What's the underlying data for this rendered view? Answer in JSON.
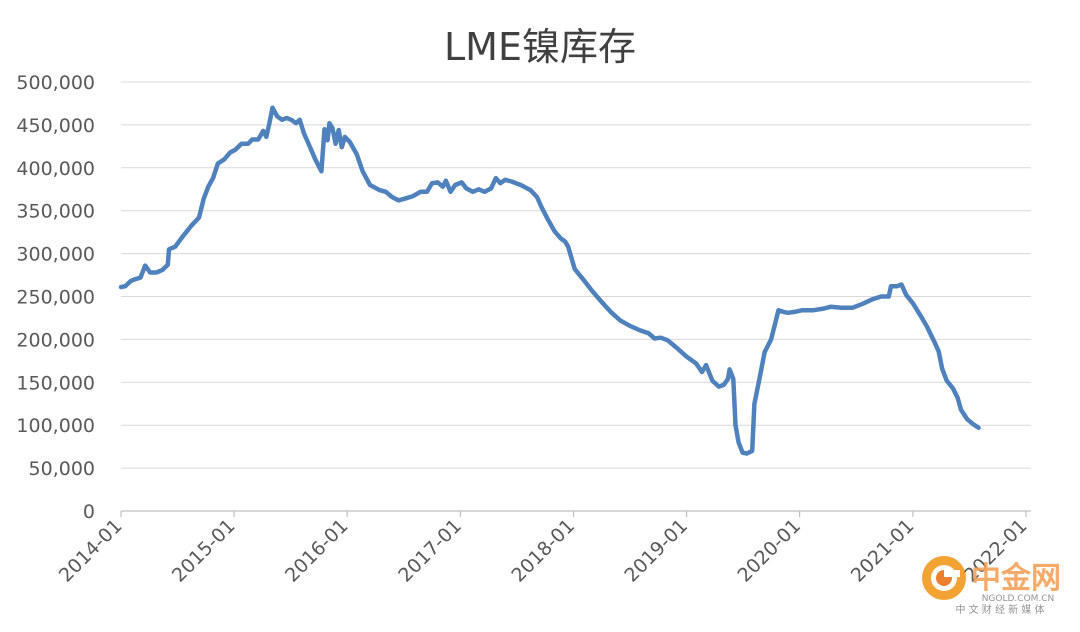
{
  "chart_data": {
    "type": "line",
    "title": "LME镍库存",
    "xlabel": "",
    "ylabel": "",
    "ylim": [
      0,
      500000
    ],
    "grid": "horizontal",
    "legend": "none",
    "y_ticks": [
      "0",
      "50,000",
      "100,000",
      "150,000",
      "200,000",
      "250,000",
      "300,000",
      "350,000",
      "400,000",
      "450,000",
      "500,000"
    ],
    "x_ticks": [
      "2014-01",
      "2015-01",
      "2016-01",
      "2017-01",
      "2018-01",
      "2019-01",
      "2020-01",
      "2021-01",
      "2022-01"
    ],
    "series": [
      {
        "color": "#4f81bd",
        "points": [
          [
            "2014-01-01",
            261000
          ],
          [
            "2014-01-15",
            262000
          ],
          [
            "2014-02-01",
            268000
          ],
          [
            "2014-02-15",
            270000
          ],
          [
            "2014-03-05",
            272000
          ],
          [
            "2014-03-20",
            286000
          ],
          [
            "2014-04-05",
            278000
          ],
          [
            "2014-04-25",
            278000
          ],
          [
            "2014-05-15",
            281000
          ],
          [
            "2014-06-01",
            287000
          ],
          [
            "2014-06-05",
            305000
          ],
          [
            "2014-06-25",
            308000
          ],
          [
            "2014-07-15",
            318000
          ],
          [
            "2014-08-15",
            332000
          ],
          [
            "2014-09-10",
            342000
          ],
          [
            "2014-09-25",
            364000
          ],
          [
            "2014-10-10",
            378000
          ],
          [
            "2014-10-25",
            388000
          ],
          [
            "2014-11-10",
            405000
          ],
          [
            "2014-12-01",
            410000
          ],
          [
            "2014-12-20",
            418000
          ],
          [
            "2015-01-05",
            421000
          ],
          [
            "2015-01-25",
            428000
          ],
          [
            "2015-02-15",
            428000
          ],
          [
            "2015-03-01",
            433000
          ],
          [
            "2015-03-20",
            433000
          ],
          [
            "2015-04-05",
            443000
          ],
          [
            "2015-04-15",
            436000
          ],
          [
            "2015-04-25",
            452000
          ],
          [
            "2015-05-05",
            470000
          ],
          [
            "2015-05-20",
            460000
          ],
          [
            "2015-06-05",
            456000
          ],
          [
            "2015-06-20",
            458000
          ],
          [
            "2015-07-05",
            456000
          ],
          [
            "2015-07-20",
            452000
          ],
          [
            "2015-08-01",
            456000
          ],
          [
            "2015-08-15",
            440000
          ],
          [
            "2015-09-01",
            426000
          ],
          [
            "2015-09-20",
            410000
          ],
          [
            "2015-10-10",
            396000
          ],
          [
            "2015-10-20",
            445000
          ],
          [
            "2015-10-30",
            432000
          ],
          [
            "2015-11-05",
            452000
          ],
          [
            "2015-11-15",
            446000
          ],
          [
            "2015-11-25",
            428000
          ],
          [
            "2015-12-05",
            444000
          ],
          [
            "2015-12-15",
            424000
          ],
          [
            "2015-12-25",
            436000
          ],
          [
            "2016-01-10",
            430000
          ],
          [
            "2016-02-01",
            416000
          ],
          [
            "2016-02-20",
            396000
          ],
          [
            "2016-03-15",
            380000
          ],
          [
            "2016-04-15",
            374000
          ],
          [
            "2016-05-05",
            372000
          ],
          [
            "2016-05-25",
            366000
          ],
          [
            "2016-06-15",
            362000
          ],
          [
            "2016-07-05",
            364000
          ],
          [
            "2016-08-01",
            367000
          ],
          [
            "2016-08-25",
            372000
          ],
          [
            "2016-09-15",
            372000
          ],
          [
            "2016-10-01",
            382000
          ],
          [
            "2016-10-20",
            383000
          ],
          [
            "2016-11-05",
            378000
          ],
          [
            "2016-11-15",
            385000
          ],
          [
            "2016-11-30",
            372000
          ],
          [
            "2016-12-15",
            380000
          ],
          [
            "2017-01-05",
            383000
          ],
          [
            "2017-01-20",
            376000
          ],
          [
            "2017-02-10",
            372000
          ],
          [
            "2017-03-01",
            375000
          ],
          [
            "2017-03-20",
            372000
          ],
          [
            "2017-04-10",
            376000
          ],
          [
            "2017-04-25",
            388000
          ],
          [
            "2017-05-10",
            382000
          ],
          [
            "2017-05-25",
            386000
          ],
          [
            "2017-06-15",
            384000
          ],
          [
            "2017-07-15",
            380000
          ],
          [
            "2017-08-15",
            374000
          ],
          [
            "2017-09-05",
            366000
          ],
          [
            "2017-09-20",
            354000
          ],
          [
            "2017-10-10",
            340000
          ],
          [
            "2017-11-01",
            326000
          ],
          [
            "2017-11-20",
            318000
          ],
          [
            "2017-12-05",
            314000
          ],
          [
            "2017-12-15",
            308000
          ],
          [
            "2018-01-05",
            282000
          ],
          [
            "2018-02-01",
            270000
          ],
          [
            "2018-03-01",
            257000
          ],
          [
            "2018-04-01",
            244000
          ],
          [
            "2018-05-01",
            232000
          ],
          [
            "2018-06-01",
            222000
          ],
          [
            "2018-07-01",
            216000
          ],
          [
            "2018-08-01",
            211000
          ],
          [
            "2018-09-01",
            207000
          ],
          [
            "2018-09-20",
            201000
          ],
          [
            "2018-10-10",
            202000
          ],
          [
            "2018-11-01",
            199000
          ],
          [
            "2018-12-01",
            190000
          ],
          [
            "2019-01-01",
            180000
          ],
          [
            "2019-02-01",
            172000
          ],
          [
            "2019-02-20",
            162000
          ],
          [
            "2019-03-05",
            170000
          ],
          [
            "2019-03-25",
            152000
          ],
          [
            "2019-04-15",
            145000
          ],
          [
            "2019-05-01",
            147000
          ],
          [
            "2019-05-15",
            154000
          ],
          [
            "2019-05-20",
            165000
          ],
          [
            "2019-06-01",
            154000
          ],
          [
            "2019-06-08",
            100000
          ],
          [
            "2019-06-18",
            80000
          ],
          [
            "2019-07-01",
            68000
          ],
          [
            "2019-07-15",
            67000
          ],
          [
            "2019-08-01",
            70000
          ],
          [
            "2019-08-08",
            125000
          ],
          [
            "2019-08-25",
            155000
          ],
          [
            "2019-09-10",
            185000
          ],
          [
            "2019-10-01",
            200000
          ],
          [
            "2019-10-25",
            234000
          ],
          [
            "2019-11-10",
            232000
          ],
          [
            "2019-11-25",
            231000
          ],
          [
            "2019-12-15",
            232000
          ],
          [
            "2020-01-10",
            234000
          ],
          [
            "2020-02-15",
            234000
          ],
          [
            "2020-03-20",
            236000
          ],
          [
            "2020-04-10",
            238000
          ],
          [
            "2020-05-15",
            237000
          ],
          [
            "2020-06-20",
            237000
          ],
          [
            "2020-07-20",
            241000
          ],
          [
            "2020-08-25",
            247000
          ],
          [
            "2020-09-20",
            250000
          ],
          [
            "2020-10-15",
            250000
          ],
          [
            "2020-10-22",
            262000
          ],
          [
            "2020-11-10",
            262000
          ],
          [
            "2020-11-25",
            264000
          ],
          [
            "2020-12-10",
            252000
          ],
          [
            "2021-01-01",
            242000
          ],
          [
            "2021-01-25",
            228000
          ],
          [
            "2021-02-15",
            215000
          ],
          [
            "2021-03-10",
            198000
          ],
          [
            "2021-03-25",
            186000
          ],
          [
            "2021-04-05",
            166000
          ],
          [
            "2021-04-20",
            152000
          ],
          [
            "2021-05-10",
            143000
          ],
          [
            "2021-05-25",
            132000
          ],
          [
            "2021-06-05",
            118000
          ],
          [
            "2021-06-25",
            107000
          ],
          [
            "2021-07-15",
            101000
          ],
          [
            "2021-08-01",
            97000
          ]
        ]
      }
    ],
    "watermark": {
      "brand": "中金网",
      "url": "NGOLD.COM.CN",
      "tagline": "中 文 财 经 新 媒 体"
    }
  }
}
